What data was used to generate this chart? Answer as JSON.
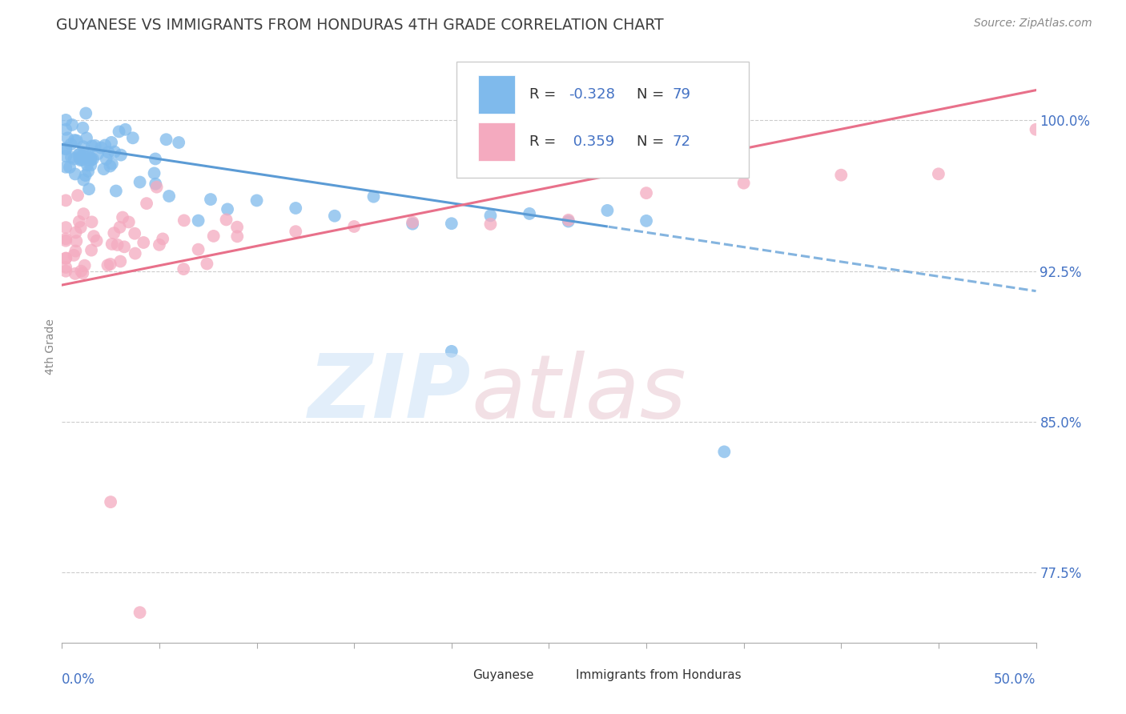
{
  "title": "GUYANESE VS IMMIGRANTS FROM HONDURAS 4TH GRADE CORRELATION CHART",
  "source": "Source: ZipAtlas.com",
  "ylabel": "4th Grade",
  "yticks": [
    77.5,
    85.0,
    92.5,
    100.0
  ],
  "ytick_labels": [
    "77.5%",
    "85.0%",
    "92.5%",
    "100.0%"
  ],
  "xlim": [
    0.0,
    50.0
  ],
  "ylim": [
    74.0,
    103.5
  ],
  "blue_color": "#7FBAEC",
  "pink_color": "#F4AABF",
  "blue_line_color": "#5B9BD5",
  "pink_line_color": "#E8708A",
  "background_color": "#FFFFFF",
  "blue_r": "-0.328",
  "blue_n": "79",
  "pink_r": "0.359",
  "pink_n": "72",
  "blue_trend_x0": 0.0,
  "blue_trend_y0": 98.8,
  "blue_trend_x1": 50.0,
  "blue_trend_y1": 91.5,
  "blue_solid_end": 28.0,
  "pink_trend_x0": 0.0,
  "pink_trend_y0": 91.8,
  "pink_trend_x1": 50.0,
  "pink_trend_y1": 101.5
}
